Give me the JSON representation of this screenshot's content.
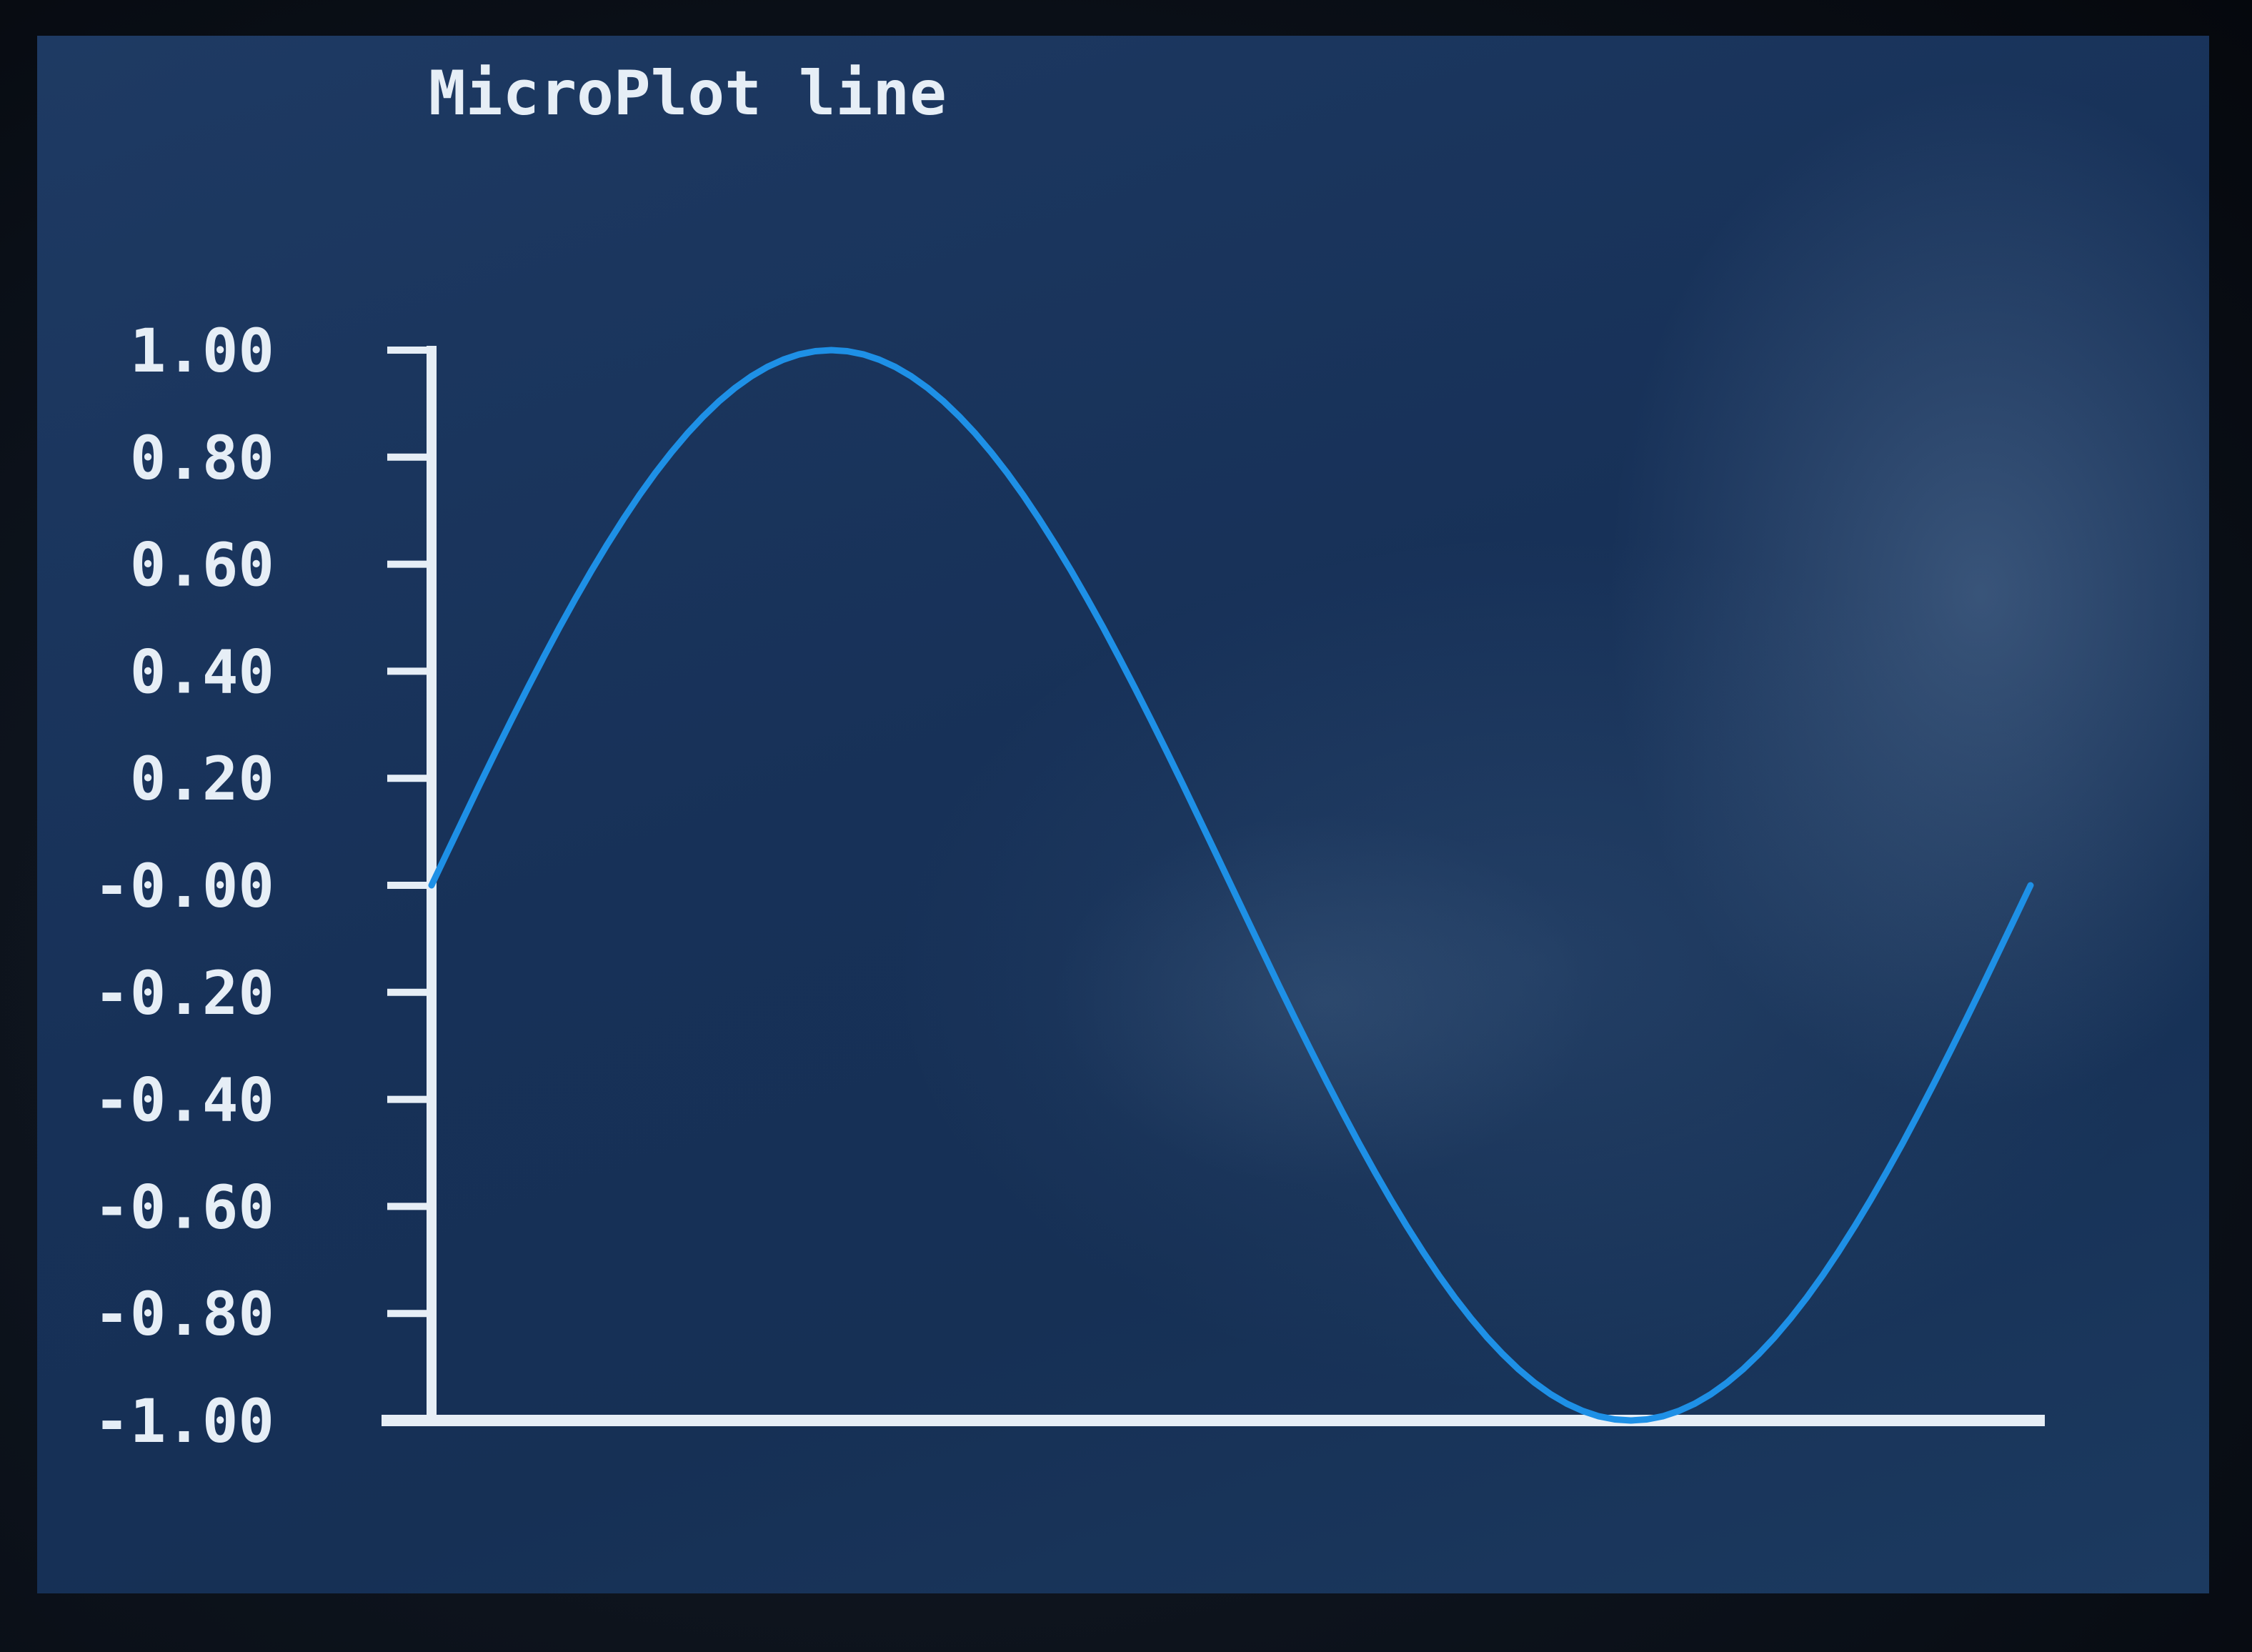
{
  "chart_data": {
    "type": "line",
    "title": "MicroPlot line",
    "xlabel": "",
    "ylabel": "",
    "ylim": [
      -1.0,
      1.0
    ],
    "xlim": [
      0,
      100
    ],
    "y_ticks": [
      1.0,
      0.8,
      0.6,
      0.4,
      0.2,
      0.0,
      -0.2,
      -0.4,
      -0.6,
      -0.8,
      -1.0
    ],
    "y_tick_labels": [
      "1.00",
      "0.80",
      "0.60",
      "0.40",
      "0.20",
      "-0.00",
      "-0.20",
      "-0.40",
      "-0.60",
      "-0.80",
      "-1.00"
    ],
    "grid": false,
    "colors": {
      "line": "#1e90e6",
      "axis": "#e6eef6",
      "text": "#e6eef6",
      "background": "#173158"
    },
    "series": [
      {
        "values": [
          0.0,
          0.0628,
          0.1253,
          0.1874,
          0.2487,
          0.309,
          0.3681,
          0.4258,
          0.4818,
          0.5358,
          0.5878,
          0.6374,
          0.6845,
          0.729,
          0.7705,
          0.809,
          0.8443,
          0.8763,
          0.9048,
          0.9298,
          0.9511,
          0.9686,
          0.9823,
          0.9921,
          0.998,
          1.0,
          0.998,
          0.9921,
          0.9823,
          0.9686,
          0.9511,
          0.9298,
          0.9048,
          0.8763,
          0.8443,
          0.809,
          0.7705,
          0.729,
          0.6845,
          0.6374,
          0.5878,
          0.5358,
          0.4818,
          0.4258,
          0.3681,
          0.309,
          0.2487,
          0.1874,
          0.1253,
          0.0628,
          0.0,
          -0.0628,
          -0.1253,
          -0.1874,
          -0.2487,
          -0.309,
          -0.3681,
          -0.4258,
          -0.4818,
          -0.5358,
          -0.5878,
          -0.6374,
          -0.6845,
          -0.729,
          -0.7705,
          -0.809,
          -0.8443,
          -0.8763,
          -0.9048,
          -0.9298,
          -0.9511,
          -0.9686,
          -0.9823,
          -0.9921,
          -0.998,
          -1.0,
          -0.998,
          -0.9921,
          -0.9823,
          -0.9686,
          -0.9511,
          -0.9298,
          -0.9048,
          -0.8763,
          -0.8443,
          -0.809,
          -0.7705,
          -0.729,
          -0.6845,
          -0.6374,
          -0.5878,
          -0.5358,
          -0.4818,
          -0.4258,
          -0.3681,
          -0.309,
          -0.2487,
          -0.1874,
          -0.1253,
          -0.0628,
          0.0
        ]
      }
    ]
  }
}
